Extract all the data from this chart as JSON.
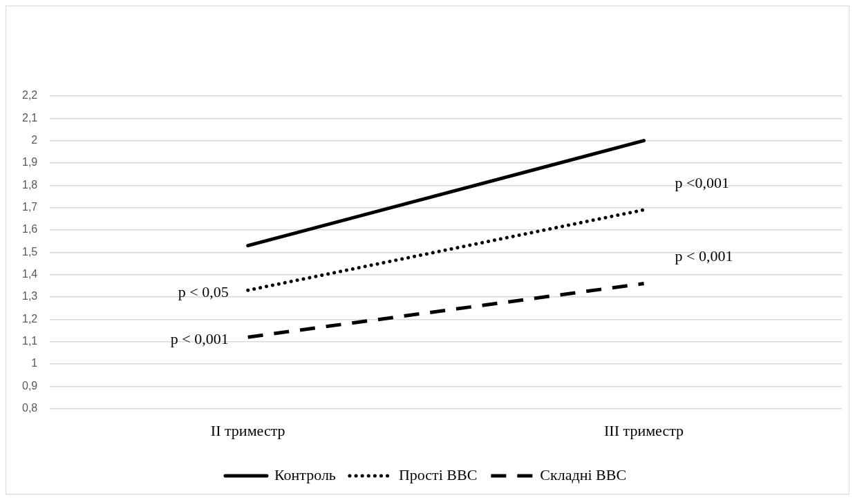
{
  "chart_data": {
    "type": "line",
    "categories": [
      "II триместр",
      "III триместр"
    ],
    "series": [
      {
        "name": "Контроль",
        "color": "#000000",
        "line_style": "solid",
        "values": [
          1.53,
          2.0
        ]
      },
      {
        "name": "Прості ВВС",
        "color": "#000000",
        "line_style": "dotted",
        "values": [
          1.33,
          1.69
        ]
      },
      {
        "name": "Складні ВВС",
        "color": "#000000",
        "line_style": "dashed",
        "values": [
          1.12,
          1.36
        ]
      }
    ],
    "ylim": [
      0.8,
      2.2
    ],
    "yticks": [
      {
        "value": 0.8,
        "label": "0,8"
      },
      {
        "value": 0.9,
        "label": "0,9"
      },
      1,
      {
        "value": 1.1,
        "label": "1,1"
      },
      {
        "value": 1.2,
        "label": "1,2"
      },
      {
        "value": 1.3,
        "label": "1,3"
      },
      {
        "value": 1.4,
        "label": "1,4"
      },
      {
        "value": 1.5,
        "label": "1,5"
      },
      {
        "value": 1.6,
        "label": "1,6"
      },
      {
        "value": 1.7,
        "label": "1,7"
      },
      {
        "value": 1.8,
        "label": "1,8"
      },
      {
        "value": 1.9,
        "label": "1,9"
      },
      2,
      {
        "value": 2.1,
        "label": "2,1"
      },
      {
        "value": 2.2,
        "label": "2,2"
      }
    ],
    "grid": "y",
    "legend": "bottom",
    "marker": "none",
    "annotations": [
      {
        "text": "p < 0,05",
        "x": "II триместр",
        "y": 1.33
      },
      {
        "text": "p < 0,001",
        "x": "II триместр",
        "y": 1.12
      },
      {
        "text": "p <0,001",
        "x": "III триместр",
        "y": 1.69
      },
      {
        "text": "p < 0,001",
        "x": "III триместр",
        "y": 1.36
      }
    ]
  }
}
